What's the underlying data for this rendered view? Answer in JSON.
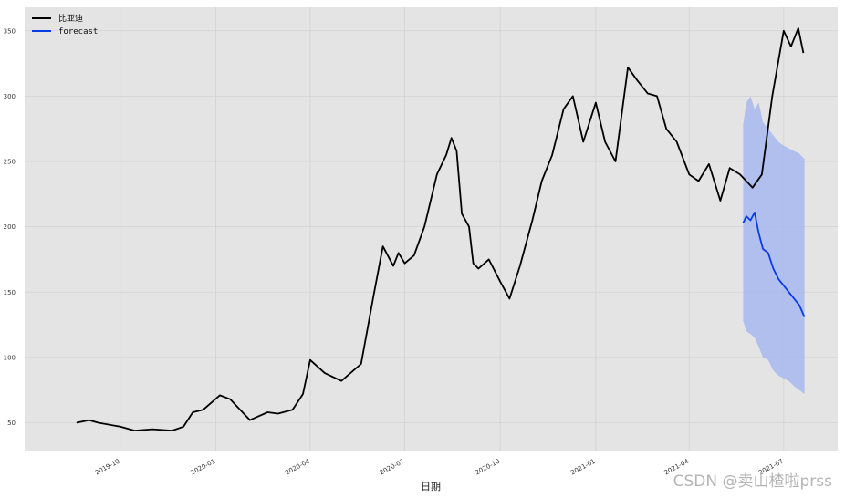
{
  "chart_data": {
    "type": "line",
    "xlabel": "日期",
    "ylabel": "",
    "ylim": [
      28,
      368
    ],
    "xlim": [
      "2019-07-01",
      "2021-08-22"
    ],
    "grid": true,
    "legend_placement": "top-left",
    "y_ticks": [
      50,
      100,
      150,
      200,
      250,
      300,
      350
    ],
    "x_ticks": [
      {
        "date": "2019-10-01",
        "label": "2019-10"
      },
      {
        "date": "2020-01-01",
        "label": "2020-01"
      },
      {
        "date": "2020-04-01",
        "label": "2020-04"
      },
      {
        "date": "2020-07-01",
        "label": "2020-07"
      },
      {
        "date": "2020-10-01",
        "label": "2020-10"
      },
      {
        "date": "2021-01-01",
        "label": "2021-01"
      },
      {
        "date": "2021-04-01",
        "label": "2021-04"
      },
      {
        "date": "2021-07-01",
        "label": "2021-07"
      }
    ],
    "series": [
      {
        "name": "比亚迪",
        "color": "#000000",
        "x": [
          "2019-08-20",
          "2019-09-01",
          "2019-09-10",
          "2019-10-01",
          "2019-10-15",
          "2019-11-01",
          "2019-11-20",
          "2019-12-01",
          "2019-12-10",
          "2019-12-20",
          "2020-01-05",
          "2020-01-15",
          "2020-02-03",
          "2020-02-20",
          "2020-03-01",
          "2020-03-15",
          "2020-03-25",
          "2020-04-01",
          "2020-04-15",
          "2020-05-01",
          "2020-05-20",
          "2020-06-01",
          "2020-06-10",
          "2020-06-20",
          "2020-06-25",
          "2020-07-01",
          "2020-07-10",
          "2020-07-20",
          "2020-08-01",
          "2020-08-10",
          "2020-08-15",
          "2020-08-20",
          "2020-08-25",
          "2020-09-01",
          "2020-09-05",
          "2020-09-10",
          "2020-09-20",
          "2020-10-01",
          "2020-10-10",
          "2020-10-20",
          "2020-11-01",
          "2020-11-10",
          "2020-11-20",
          "2020-12-01",
          "2020-12-10",
          "2020-12-20",
          "2021-01-01",
          "2021-01-10",
          "2021-01-20",
          "2021-02-01",
          "2021-02-10",
          "2021-02-20",
          "2021-03-01",
          "2021-03-10",
          "2021-03-20",
          "2021-04-01",
          "2021-04-10",
          "2021-04-20",
          "2021-05-01",
          "2021-05-10",
          "2021-05-20",
          "2021-06-01",
          "2021-06-10",
          "2021-06-20",
          "2021-07-01",
          "2021-07-08",
          "2021-07-15",
          "2021-07-20"
        ],
        "values": [
          50,
          52,
          50,
          47,
          44,
          45,
          44,
          47,
          58,
          60,
          71,
          68,
          52,
          58,
          57,
          60,
          72,
          98,
          88,
          82,
          95,
          147,
          185,
          170,
          180,
          172,
          178,
          200,
          240,
          255,
          268,
          258,
          210,
          200,
          172,
          168,
          175,
          158,
          145,
          170,
          205,
          235,
          255,
          290,
          300,
          265,
          295,
          265,
          250,
          322,
          312,
          302,
          300,
          275,
          265,
          240,
          235,
          248,
          220,
          245,
          240,
          230,
          240,
          300,
          350,
          338,
          352,
          333
        ]
      },
      {
        "name": "forecast",
        "color": "#0a3ce6",
        "x": [
          "2021-05-23",
          "2021-05-26",
          "2021-05-30",
          "2021-06-03",
          "2021-06-07",
          "2021-06-11",
          "2021-06-16",
          "2021-06-21",
          "2021-06-26",
          "2021-07-01",
          "2021-07-06",
          "2021-07-11",
          "2021-07-16",
          "2021-07-21"
        ],
        "values": [
          203,
          208,
          205,
          211,
          195,
          183,
          180,
          168,
          160,
          155,
          150,
          145,
          140,
          131
        ],
        "lower": [
          128,
          120,
          118,
          115,
          108,
          100,
          98,
          90,
          86,
          84,
          82,
          78,
          75,
          72
        ],
        "upper": [
          278,
          295,
          300,
          290,
          295,
          280,
          275,
          270,
          265,
          262,
          260,
          258,
          256,
          252
        ],
        "band_color": "#a7b9ef"
      }
    ]
  },
  "watermark": "CSDN @卖山楂啦prss"
}
